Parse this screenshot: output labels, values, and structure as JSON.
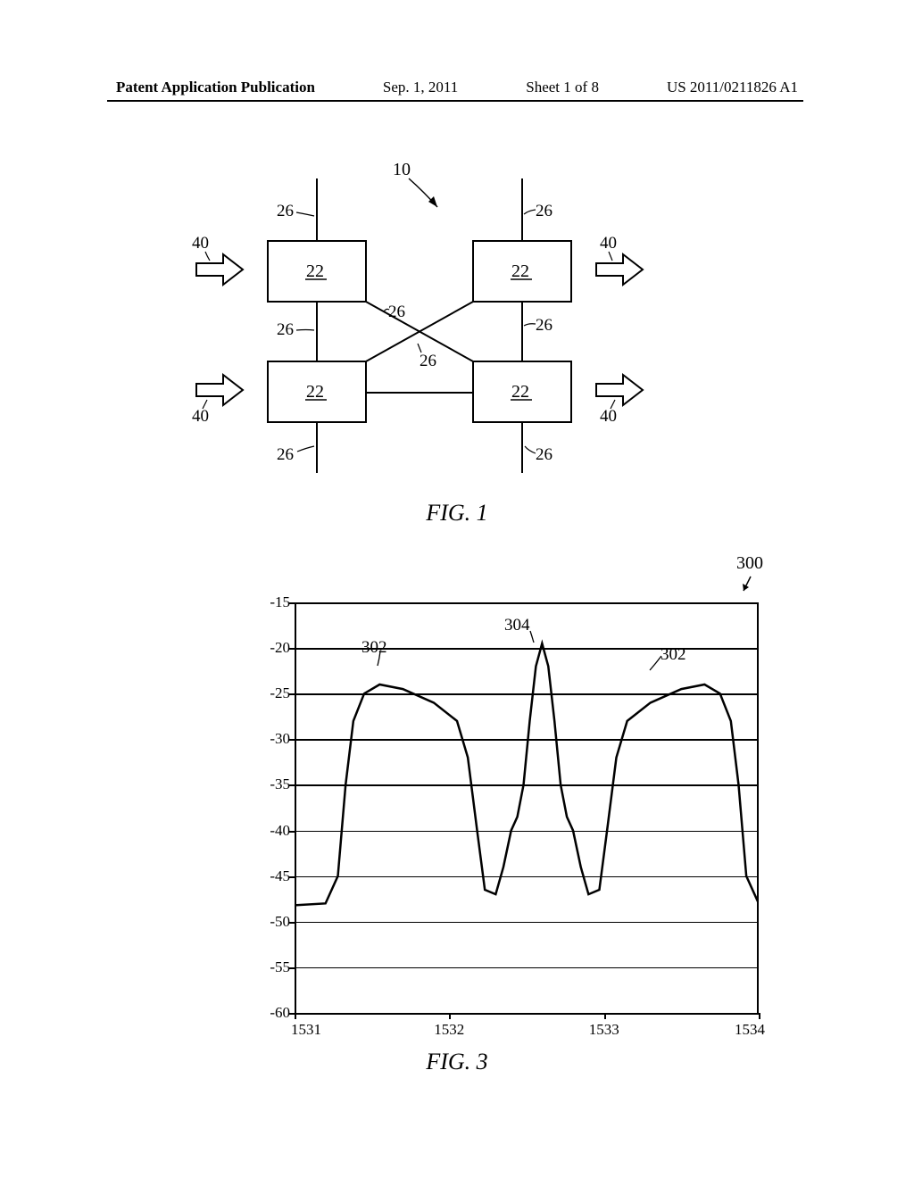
{
  "header": {
    "left": "Patent Application Publication",
    "date": "Sep. 1, 2011",
    "sheet": "Sheet 1 of 8",
    "pubno": "US 2011/0211826 A1"
  },
  "fig1": {
    "caption": "FIG. 1",
    "labels": {
      "ref10": "10",
      "ref22": "22",
      "ref26": "26",
      "ref40": "40"
    },
    "colors": {
      "stroke": "#000000",
      "fill": "#ffffff"
    },
    "line_width": 2
  },
  "fig3": {
    "caption": "FIG. 3",
    "ref300": "300",
    "callouts": {
      "ref302": "302",
      "ref304": "304"
    },
    "chart": {
      "type": "line",
      "ylim": [
        -60,
        -15
      ],
      "xlim": [
        1531,
        1534
      ],
      "yticks": [
        -15,
        -20,
        -25,
        -30,
        -35,
        -40,
        -45,
        -50,
        -55,
        -60
      ],
      "xticks": [
        1531,
        1532,
        1533,
        1534
      ],
      "gridlines_y": [
        -20,
        -25,
        -30,
        -35,
        -40,
        -45,
        -50,
        -55
      ],
      "line_color": "#000000",
      "line_width": 2.5,
      "background_color": "#ffffff",
      "grid_color": "#000000",
      "grid_width": 1.5,
      "series": [
        {
          "x": 1531.0,
          "y": -48.2
        },
        {
          "x": 1531.2,
          "y": -48.0
        },
        {
          "x": 1531.28,
          "y": -45.0
        },
        {
          "x": 1531.33,
          "y": -35.0
        },
        {
          "x": 1531.38,
          "y": -28.0
        },
        {
          "x": 1531.45,
          "y": -25.0
        },
        {
          "x": 1531.55,
          "y": -24.0
        },
        {
          "x": 1531.7,
          "y": -24.5
        },
        {
          "x": 1531.9,
          "y": -26.0
        },
        {
          "x": 1532.05,
          "y": -28.0
        },
        {
          "x": 1532.12,
          "y": -32.0
        },
        {
          "x": 1532.18,
          "y": -40.0
        },
        {
          "x": 1532.23,
          "y": -46.5
        },
        {
          "x": 1532.3,
          "y": -47.0
        },
        {
          "x": 1532.35,
          "y": -44.0
        },
        {
          "x": 1532.4,
          "y": -40.0
        },
        {
          "x": 1532.44,
          "y": -38.5
        },
        {
          "x": 1532.48,
          "y": -35.0
        },
        {
          "x": 1532.52,
          "y": -28.0
        },
        {
          "x": 1532.56,
          "y": -22.0
        },
        {
          "x": 1532.6,
          "y": -19.5
        },
        {
          "x": 1532.64,
          "y": -22.0
        },
        {
          "x": 1532.68,
          "y": -28.0
        },
        {
          "x": 1532.72,
          "y": -35.0
        },
        {
          "x": 1532.76,
          "y": -38.5
        },
        {
          "x": 1532.8,
          "y": -40.0
        },
        {
          "x": 1532.85,
          "y": -44.0
        },
        {
          "x": 1532.9,
          "y": -47.0
        },
        {
          "x": 1532.97,
          "y": -46.5
        },
        {
          "x": 1533.02,
          "y": -40.0
        },
        {
          "x": 1533.08,
          "y": -32.0
        },
        {
          "x": 1533.15,
          "y": -28.0
        },
        {
          "x": 1533.3,
          "y": -26.0
        },
        {
          "x": 1533.5,
          "y": -24.5
        },
        {
          "x": 1533.65,
          "y": -24.0
        },
        {
          "x": 1533.75,
          "y": -25.0
        },
        {
          "x": 1533.82,
          "y": -28.0
        },
        {
          "x": 1533.87,
          "y": -35.0
        },
        {
          "x": 1533.92,
          "y": -45.0
        },
        {
          "x": 1534.0,
          "y": -48.0
        }
      ]
    }
  }
}
